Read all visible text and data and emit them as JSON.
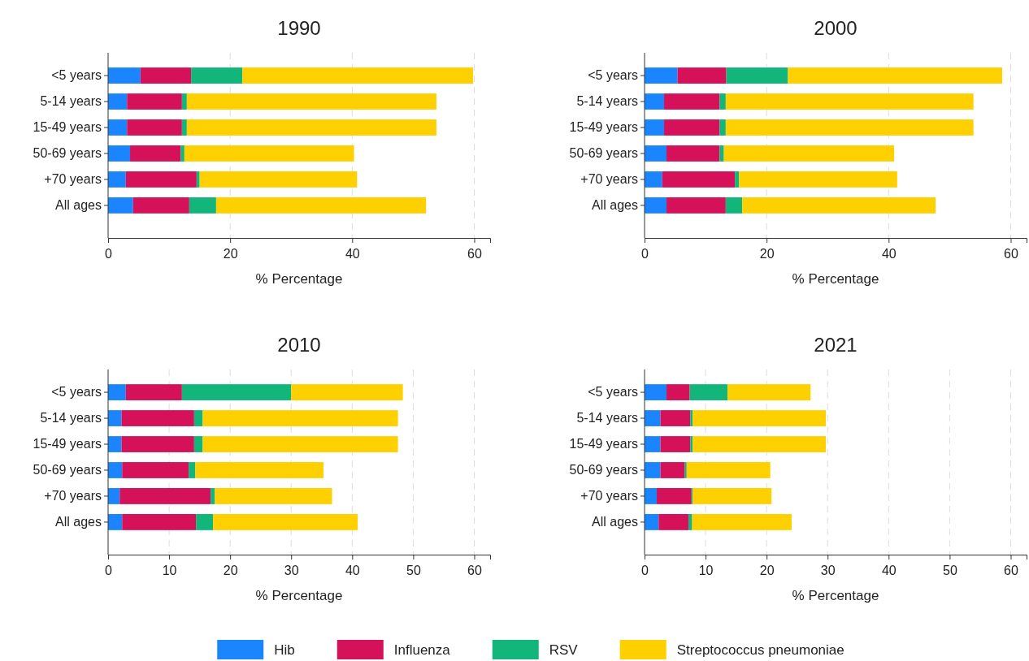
{
  "chart_data": [
    {
      "type": "bar",
      "orientation": "horizontal",
      "stacked": true,
      "title": "1990",
      "xlabel": "% Percentage",
      "categories": [
        "<5 years",
        "5-14 years",
        "15-49 years",
        "50-69 years",
        "+70 years",
        "All ages"
      ],
      "xlim": [
        0,
        62.6
      ],
      "xticks": [
        0,
        20,
        40,
        60
      ],
      "grid": "x",
      "legend": "bottom",
      "series": [
        {
          "name": "Hib",
          "color": "#1a85ff",
          "values": [
            5.3,
            3.1,
            3.1,
            3.6,
            2.9,
            4.1
          ]
        },
        {
          "name": "Influenza",
          "color": "#d41159",
          "values": [
            8.3,
            9.0,
            9.0,
            8.3,
            11.6,
            9.2
          ]
        },
        {
          "name": "RSV",
          "color": "#12b57a",
          "values": [
            8.4,
            0.8,
            0.8,
            0.6,
            0.5,
            4.4
          ]
        },
        {
          "name": "Streptococcus pneumoniae",
          "color": "#ffd000",
          "values": [
            37.8,
            40.9,
            40.9,
            27.8,
            25.8,
            34.4
          ]
        }
      ]
    },
    {
      "type": "bar",
      "orientation": "horizontal",
      "stacked": true,
      "title": "2000",
      "xlabel": "% Percentage",
      "categories": [
        "<5 years",
        "5-14 years",
        "15-49 years",
        "50-69 years",
        "+70 years",
        "All ages"
      ],
      "xlim": [
        0,
        62.6
      ],
      "xticks": [
        0,
        20,
        40,
        60
      ],
      "grid": "x",
      "legend": "bottom",
      "series": [
        {
          "name": "Hib",
          "color": "#1a85ff",
          "values": [
            5.4,
            3.2,
            3.2,
            3.6,
            2.9,
            3.6
          ]
        },
        {
          "name": "Influenza",
          "color": "#d41159",
          "values": [
            8.0,
            9.1,
            9.1,
            8.7,
            11.9,
            9.7
          ]
        },
        {
          "name": "RSV",
          "color": "#12b57a",
          "values": [
            10.1,
            1.0,
            1.0,
            0.7,
            0.7,
            2.7
          ]
        },
        {
          "name": "Streptococcus pneumoniae",
          "color": "#ffd000",
          "values": [
            35.1,
            40.6,
            40.6,
            27.9,
            25.9,
            31.7
          ]
        }
      ]
    },
    {
      "type": "bar",
      "orientation": "horizontal",
      "stacked": true,
      "title": "2010",
      "xlabel": "% Percentage",
      "categories": [
        "<5 years",
        "5-14 years",
        "15-49 years",
        "50-69 years",
        "+70 years",
        "All ages"
      ],
      "xlim": [
        0,
        62.6
      ],
      "xticks": [
        0,
        10,
        20,
        30,
        40,
        50,
        60
      ],
      "grid": "x",
      "legend": "bottom",
      "series": [
        {
          "name": "Hib",
          "color": "#1a85ff",
          "values": [
            2.9,
            2.2,
            2.2,
            2.3,
            1.9,
            2.3
          ]
        },
        {
          "name": "Influenza",
          "color": "#d41159",
          "values": [
            9.2,
            11.9,
            11.9,
            10.9,
            14.9,
            12.1
          ]
        },
        {
          "name": "RSV",
          "color": "#12b57a",
          "values": [
            17.9,
            1.4,
            1.4,
            1.1,
            0.7,
            2.8
          ]
        },
        {
          "name": "Streptococcus pneumoniae",
          "color": "#ffd000",
          "values": [
            18.3,
            32.0,
            32.0,
            21.0,
            19.2,
            23.7
          ]
        }
      ]
    },
    {
      "type": "bar",
      "orientation": "horizontal",
      "stacked": true,
      "title": "2021",
      "xlabel": "% Percentage",
      "categories": [
        "<5 years",
        "5-14 years",
        "15-49 years",
        "50-69 years",
        "+70 years",
        "All ages"
      ],
      "xlim": [
        0,
        62.6
      ],
      "xticks": [
        0,
        10,
        20,
        30,
        40,
        50,
        60
      ],
      "grid": "x",
      "legend": "bottom",
      "series": [
        {
          "name": "Hib",
          "color": "#1a85ff",
          "values": [
            3.6,
            2.6,
            2.6,
            2.6,
            2.0,
            2.3
          ]
        },
        {
          "name": "Influenza",
          "color": "#d41159",
          "values": [
            3.8,
            4.9,
            4.9,
            4.0,
            5.7,
            4.9
          ]
        },
        {
          "name": "RSV",
          "color": "#12b57a",
          "values": [
            6.2,
            0.4,
            0.4,
            0.3,
            0.2,
            0.6
          ]
        },
        {
          "name": "Streptococcus pneumoniae",
          "color": "#ffd000",
          "values": [
            13.6,
            21.8,
            21.8,
            13.7,
            12.9,
            16.3
          ]
        }
      ]
    }
  ]
}
